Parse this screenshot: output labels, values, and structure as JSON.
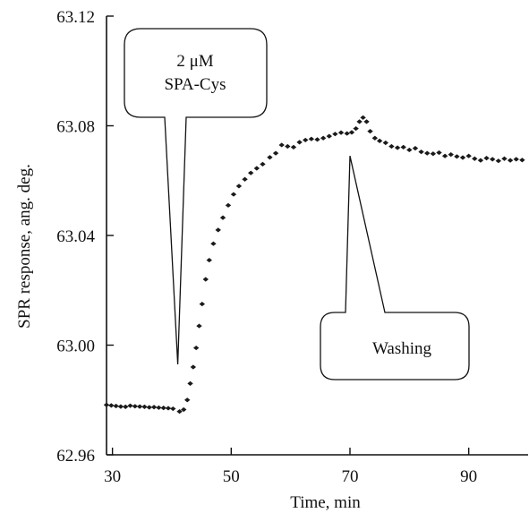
{
  "chart_data": {
    "type": "scatter",
    "xlabel": "Time, min",
    "ylabel": "SPR response, ang. deg.",
    "xlim": [
      29,
      100
    ],
    "ylim": [
      62.96,
      63.12
    ],
    "x_ticks": [
      30,
      50,
      70,
      90
    ],
    "y_ticks": [
      62.96,
      63.0,
      63.04,
      63.08,
      63.12
    ],
    "x_tick_labels": [
      "30",
      "50",
      "70",
      "90"
    ],
    "y_tick_labels": [
      "62.96",
      "63.00",
      "63.04",
      "63.08",
      "63.12"
    ],
    "series": [
      {
        "points": [
          [
            29.0,
            62.9782
          ],
          [
            29.8,
            62.978
          ],
          [
            30.6,
            62.9778
          ],
          [
            31.4,
            62.9776
          ],
          [
            32.2,
            62.9775
          ],
          [
            33.0,
            62.9779
          ],
          [
            33.8,
            62.9777
          ],
          [
            34.6,
            62.9776
          ],
          [
            35.4,
            62.9775
          ],
          [
            36.2,
            62.9773
          ],
          [
            37.0,
            62.9774
          ],
          [
            37.8,
            62.9772
          ],
          [
            38.6,
            62.9771
          ],
          [
            39.4,
            62.977
          ],
          [
            40.2,
            62.9768
          ],
          [
            41.3,
            62.9758
          ],
          [
            42.0,
            62.9765
          ],
          [
            42.6,
            62.98
          ],
          [
            43.1,
            62.986
          ],
          [
            43.6,
            62.992
          ],
          [
            44.1,
            62.999
          ],
          [
            44.6,
            63.007
          ],
          [
            45.1,
            63.015
          ],
          [
            45.7,
            63.024
          ],
          [
            46.3,
            63.031
          ],
          [
            47.0,
            63.037
          ],
          [
            47.8,
            63.042
          ],
          [
            48.6,
            63.0465
          ],
          [
            49.5,
            63.051
          ],
          [
            50.4,
            63.055
          ],
          [
            51.3,
            63.058
          ],
          [
            52.3,
            63.0605
          ],
          [
            53.3,
            63.0628
          ],
          [
            54.3,
            63.0645
          ],
          [
            55.3,
            63.066
          ],
          [
            56.5,
            63.0685
          ],
          [
            57.5,
            63.07
          ],
          [
            58.5,
            63.073
          ],
          [
            59.5,
            63.0725
          ],
          [
            60.5,
            63.0722
          ],
          [
            61.5,
            63.074
          ],
          [
            62.5,
            63.0748
          ],
          [
            63.5,
            63.0752
          ],
          [
            64.5,
            63.075
          ],
          [
            65.5,
            63.0755
          ],
          [
            66.5,
            63.0762
          ],
          [
            67.5,
            63.077
          ],
          [
            68.5,
            63.0775
          ],
          [
            69.5,
            63.0772
          ],
          [
            70.3,
            63.0776
          ],
          [
            71.0,
            63.079
          ],
          [
            71.6,
            63.0815
          ],
          [
            72.2,
            63.083
          ],
          [
            72.8,
            63.0815
          ],
          [
            73.4,
            63.078
          ],
          [
            74.2,
            63.0755
          ],
          [
            75.0,
            63.0745
          ],
          [
            76.0,
            63.0738
          ],
          [
            77.0,
            63.0725
          ],
          [
            78.0,
            63.072
          ],
          [
            79.0,
            63.0722
          ],
          [
            80.0,
            63.0712
          ],
          [
            81.0,
            63.0718
          ],
          [
            82.0,
            63.0705
          ],
          [
            83.0,
            63.07
          ],
          [
            84.0,
            63.0698
          ],
          [
            85.0,
            63.0702
          ],
          [
            86.0,
            63.069
          ],
          [
            87.0,
            63.0695
          ],
          [
            88.0,
            63.0688
          ],
          [
            89.0,
            63.0684
          ],
          [
            90.0,
            63.069
          ],
          [
            91.0,
            63.068
          ],
          [
            92.0,
            63.0674
          ],
          [
            93.0,
            63.0682
          ],
          [
            94.0,
            63.0678
          ],
          [
            95.0,
            63.0672
          ],
          [
            96.0,
            63.068
          ],
          [
            97.0,
            63.0674
          ],
          [
            98.0,
            63.0678
          ],
          [
            99.0,
            63.0675
          ]
        ]
      }
    ],
    "annotations": [
      {
        "id": "spa-cys",
        "lines": [
          "2 μM",
          "SPA-Cys"
        ],
        "x": 41.0,
        "y": 62.993
      },
      {
        "id": "washing",
        "lines": [
          "Washing"
        ],
        "x": 70.0,
        "y": 63.069
      }
    ],
    "grid": false,
    "legend": "none"
  }
}
